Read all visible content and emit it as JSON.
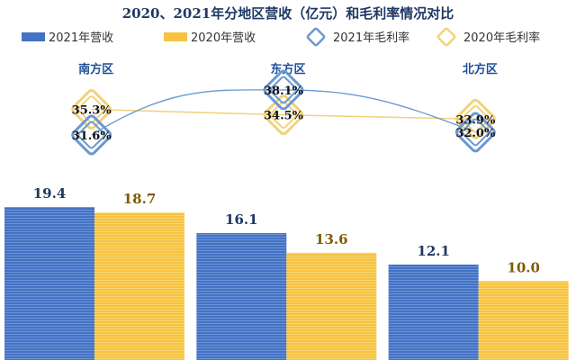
{
  "chart_data": {
    "type": "bar",
    "title": "2020、2021年分地区营收（亿元）和毛利率情况对比",
    "categories": [
      "南方区",
      "东方区",
      "北方区"
    ],
    "series": [
      {
        "name": "2021年营收",
        "kind": "bar",
        "values": [
          19.4,
          16.1,
          12.1
        ],
        "value_labels": [
          "19.4",
          "16.1",
          "12.1"
        ],
        "color": "#4472C4"
      },
      {
        "name": "2020年营收",
        "kind": "bar",
        "values": [
          18.7,
          13.6,
          10.0
        ],
        "value_labels": [
          "18.7",
          "13.6",
          "10.0"
        ],
        "color": "#F5C242"
      },
      {
        "name": "2021年毛利率",
        "kind": "line",
        "values": [
          31.6,
          38.1,
          32.0
        ],
        "value_labels": [
          "31.6%",
          "38.1%",
          "32.0%"
        ],
        "color": "#6A99D0"
      },
      {
        "name": "2020年毛利率",
        "kind": "line",
        "values": [
          35.3,
          34.5,
          33.9
        ],
        "value_labels": [
          "35.3%",
          "34.5%",
          "33.9%"
        ],
        "color": "#F2D27A"
      }
    ],
    "legend_position": "top",
    "grid": false,
    "colors": {
      "bar_label_2021": "#1F3864",
      "bar_label_2020": "#7F5A00",
      "region_label": "#1F4E9A"
    }
  }
}
